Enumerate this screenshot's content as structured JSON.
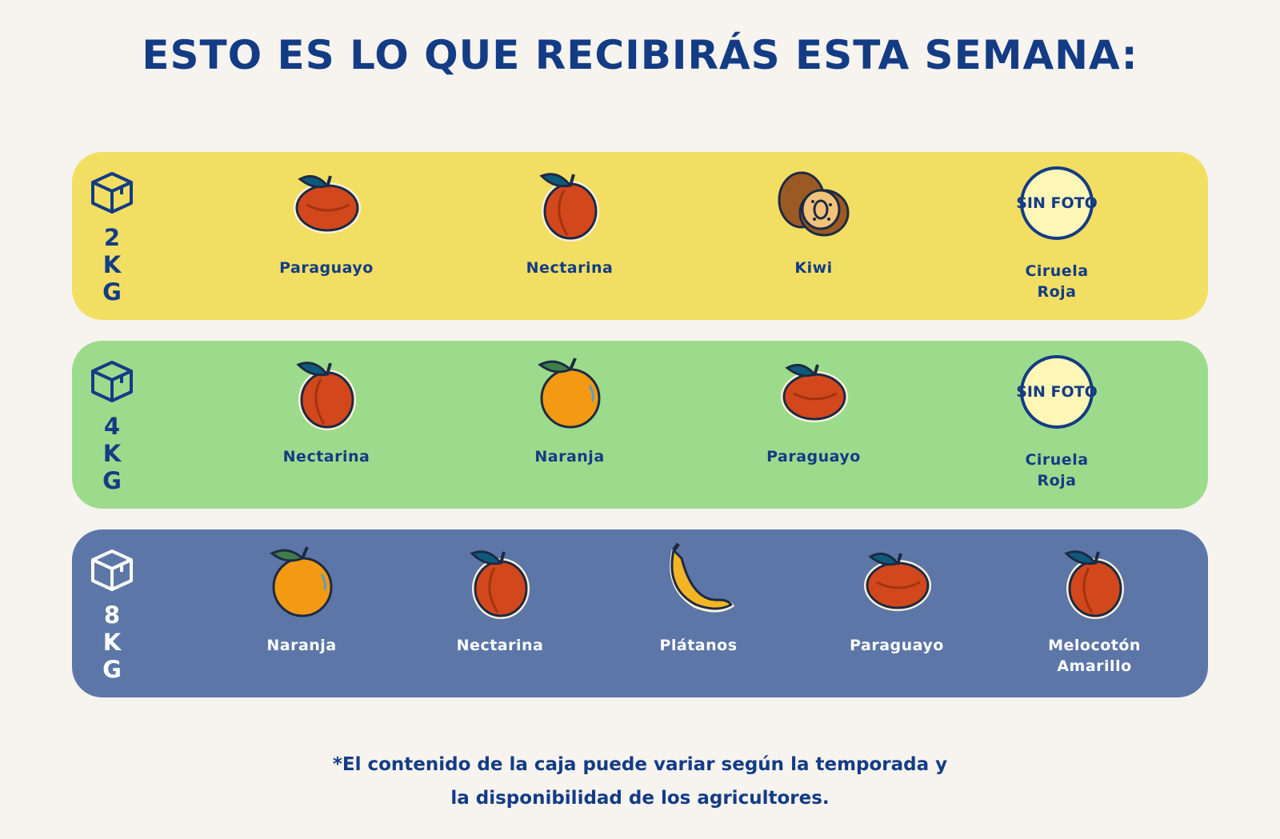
{
  "title": "ESTO ES LO QUE RECIBIRÁS ESTA SEMANA:",
  "colors": {
    "brand_blue": "#133c85",
    "row_2kg": "#f2de62",
    "row_4kg": "#9ddb8c",
    "row_8kg": "#5c76a8",
    "background": "#f7f3ef",
    "no_photo_fill": "#fdf6b7"
  },
  "boxes": [
    {
      "weight": "2KG",
      "icon": "box-icon",
      "items": [
        {
          "name": "Paraguayo",
          "icon": "paraguayo-icon"
        },
        {
          "name": "Nectarina",
          "icon": "nectarine-icon"
        },
        {
          "name": "Kiwi",
          "icon": "kiwi-icon"
        },
        {
          "name": "Ciruela Roja",
          "icon": "no-photo-placeholder",
          "placeholder_text": "SIN FOTO"
        }
      ]
    },
    {
      "weight": "4KG",
      "icon": "box-icon",
      "items": [
        {
          "name": "Nectarina",
          "icon": "nectarine-icon"
        },
        {
          "name": "Naranja",
          "icon": "orange-icon"
        },
        {
          "name": "Paraguayo",
          "icon": "paraguayo-icon"
        },
        {
          "name": "Ciruela Roja",
          "icon": "no-photo-placeholder",
          "placeholder_text": "SIN FOTO"
        }
      ]
    },
    {
      "weight": "8KG",
      "icon": "box-icon",
      "items": [
        {
          "name": "Naranja",
          "icon": "orange-icon"
        },
        {
          "name": "Nectarina",
          "icon": "nectarine-icon"
        },
        {
          "name": "Plátanos",
          "icon": "banana-icon"
        },
        {
          "name": "Paraguayo",
          "icon": "paraguayo-icon"
        },
        {
          "name": "Melocotón Amarillo",
          "icon": "peach-icon"
        }
      ]
    }
  ],
  "footnote": {
    "line1": "*El contenido de la caja puede variar según la temporada y",
    "line2": "la disponibilidad de los agricultores."
  }
}
